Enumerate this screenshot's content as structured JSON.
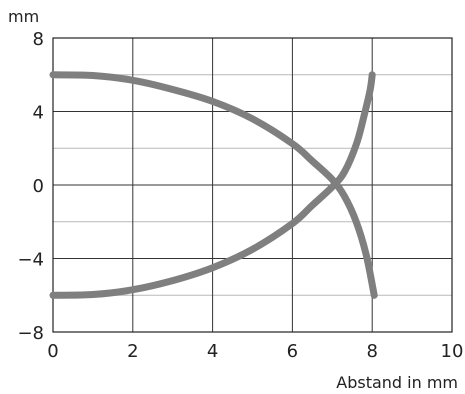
{
  "chart_data": {
    "type": "line",
    "title": "",
    "xlabel": "Abstand in mm",
    "ylabel": "mm",
    "xlim": [
      0,
      10
    ],
    "ylim": [
      -8,
      8
    ],
    "x_ticks": [
      "0",
      "2",
      "4",
      "6",
      "8",
      "10"
    ],
    "y_ticks": [
      "8",
      "4",
      "0",
      "−4",
      "−8"
    ],
    "y_tick_values": [
      8,
      4,
      0,
      -4,
      -8
    ],
    "minor_grid_y": [
      6,
      2,
      -2,
      -6
    ],
    "grid": true,
    "series": [
      {
        "x": [
          0,
          1,
          2,
          3,
          4,
          5,
          6,
          6.5,
          7,
          7.3,
          7.6,
          7.85,
          8.05
        ],
        "y": [
          6,
          5.96,
          5.7,
          5.2,
          4.55,
          3.6,
          2.25,
          1.3,
          0.3,
          -0.6,
          -2,
          -3.8,
          -6
        ]
      },
      {
        "x": [
          0,
          1,
          2,
          3,
          4,
          5,
          6,
          6.5,
          7,
          7.3,
          7.6,
          7.8,
          7.95,
          8.0
        ],
        "y": [
          -6,
          -5.96,
          -5.7,
          -5.2,
          -4.5,
          -3.5,
          -2.1,
          -1.1,
          -0.1,
          0.7,
          2.2,
          3.8,
          5.2,
          6
        ]
      }
    ],
    "colors": {
      "curve": "#7f7f7f",
      "grid_major": "#333333",
      "grid_minor": "#b9b9b9",
      "frame": "#222222"
    }
  }
}
